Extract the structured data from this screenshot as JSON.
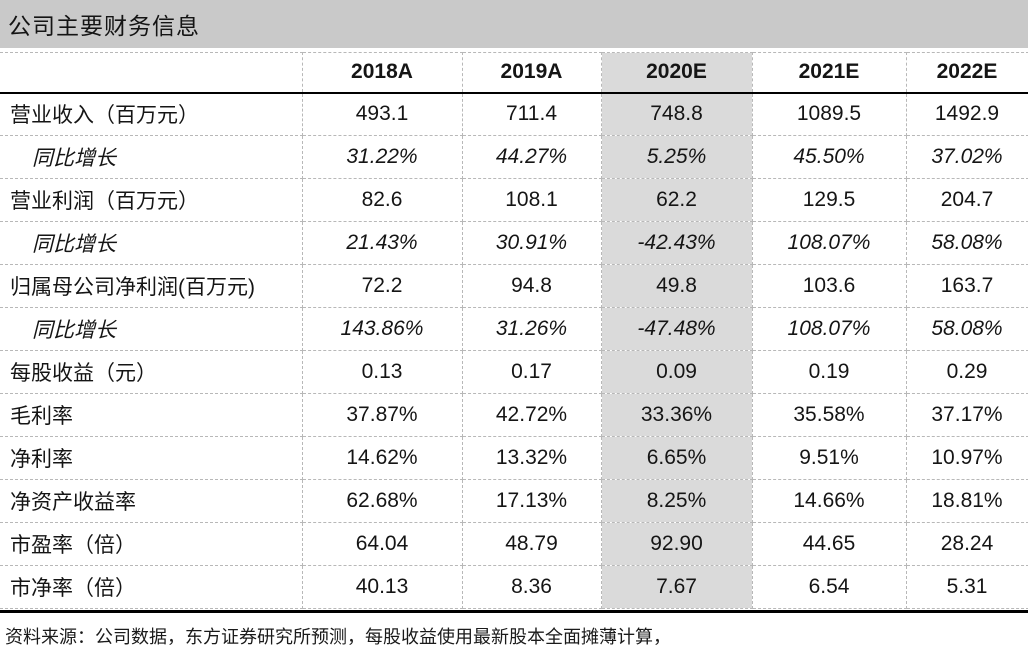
{
  "title": "公司主要财务信息",
  "table": {
    "header": [
      "",
      "2018A",
      "2019A",
      "2020E",
      "2021E",
      "2022E"
    ],
    "highlight_col": 3,
    "rows": [
      {
        "label": "营业收入（百万元）",
        "indent": false,
        "italic": false,
        "values": [
          "493.1",
          "711.4",
          "748.8",
          "1089.5",
          "1492.9"
        ]
      },
      {
        "label": "同比增长",
        "indent": true,
        "italic": true,
        "values": [
          "31.22%",
          "44.27%",
          "5.25%",
          "45.50%",
          "37.02%"
        ]
      },
      {
        "label": "营业利润（百万元）",
        "indent": false,
        "italic": false,
        "values": [
          "82.6",
          "108.1",
          "62.2",
          "129.5",
          "204.7"
        ]
      },
      {
        "label": "同比增长",
        "indent": true,
        "italic": true,
        "values": [
          "21.43%",
          "30.91%",
          "-42.43%",
          "108.07%",
          "58.08%"
        ]
      },
      {
        "label": "归属母公司净利润(百万元)",
        "indent": false,
        "italic": false,
        "values": [
          "72.2",
          "94.8",
          "49.8",
          "103.6",
          "163.7"
        ]
      },
      {
        "label": "同比增长",
        "indent": true,
        "italic": true,
        "values": [
          "143.86%",
          "31.26%",
          "-47.48%",
          "108.07%",
          "58.08%"
        ]
      },
      {
        "label": "每股收益（元）",
        "indent": false,
        "italic": false,
        "values": [
          "0.13",
          "0.17",
          "0.09",
          "0.19",
          "0.29"
        ]
      },
      {
        "label": "毛利率",
        "indent": false,
        "italic": false,
        "values": [
          "37.87%",
          "42.72%",
          "33.36%",
          "35.58%",
          "37.17%"
        ]
      },
      {
        "label": "净利率",
        "indent": false,
        "italic": false,
        "values": [
          "14.62%",
          "13.32%",
          "6.65%",
          "9.51%",
          "10.97%"
        ]
      },
      {
        "label": "净资产收益率",
        "indent": false,
        "italic": false,
        "values": [
          "62.68%",
          "17.13%",
          "8.25%",
          "14.66%",
          "18.81%"
        ]
      },
      {
        "label": "市盈率（倍）",
        "indent": false,
        "italic": false,
        "values": [
          "64.04",
          "48.79",
          "92.90",
          "44.65",
          "28.24"
        ]
      },
      {
        "label": "市净率（倍）",
        "indent": false,
        "italic": false,
        "values": [
          "40.13",
          "8.36",
          "7.67",
          "6.54",
          "5.31"
        ]
      }
    ]
  },
  "footer": "资料来源：公司数据，东方证券研究所预测，每股收益使用最新股本全面摊薄计算，",
  "colors": {
    "title_bar_bg": "#c9c9c9",
    "highlight_col_bg": "#dadada",
    "dashed_border": "#b8b8b8",
    "rule": "#000000",
    "text": "#151515"
  }
}
